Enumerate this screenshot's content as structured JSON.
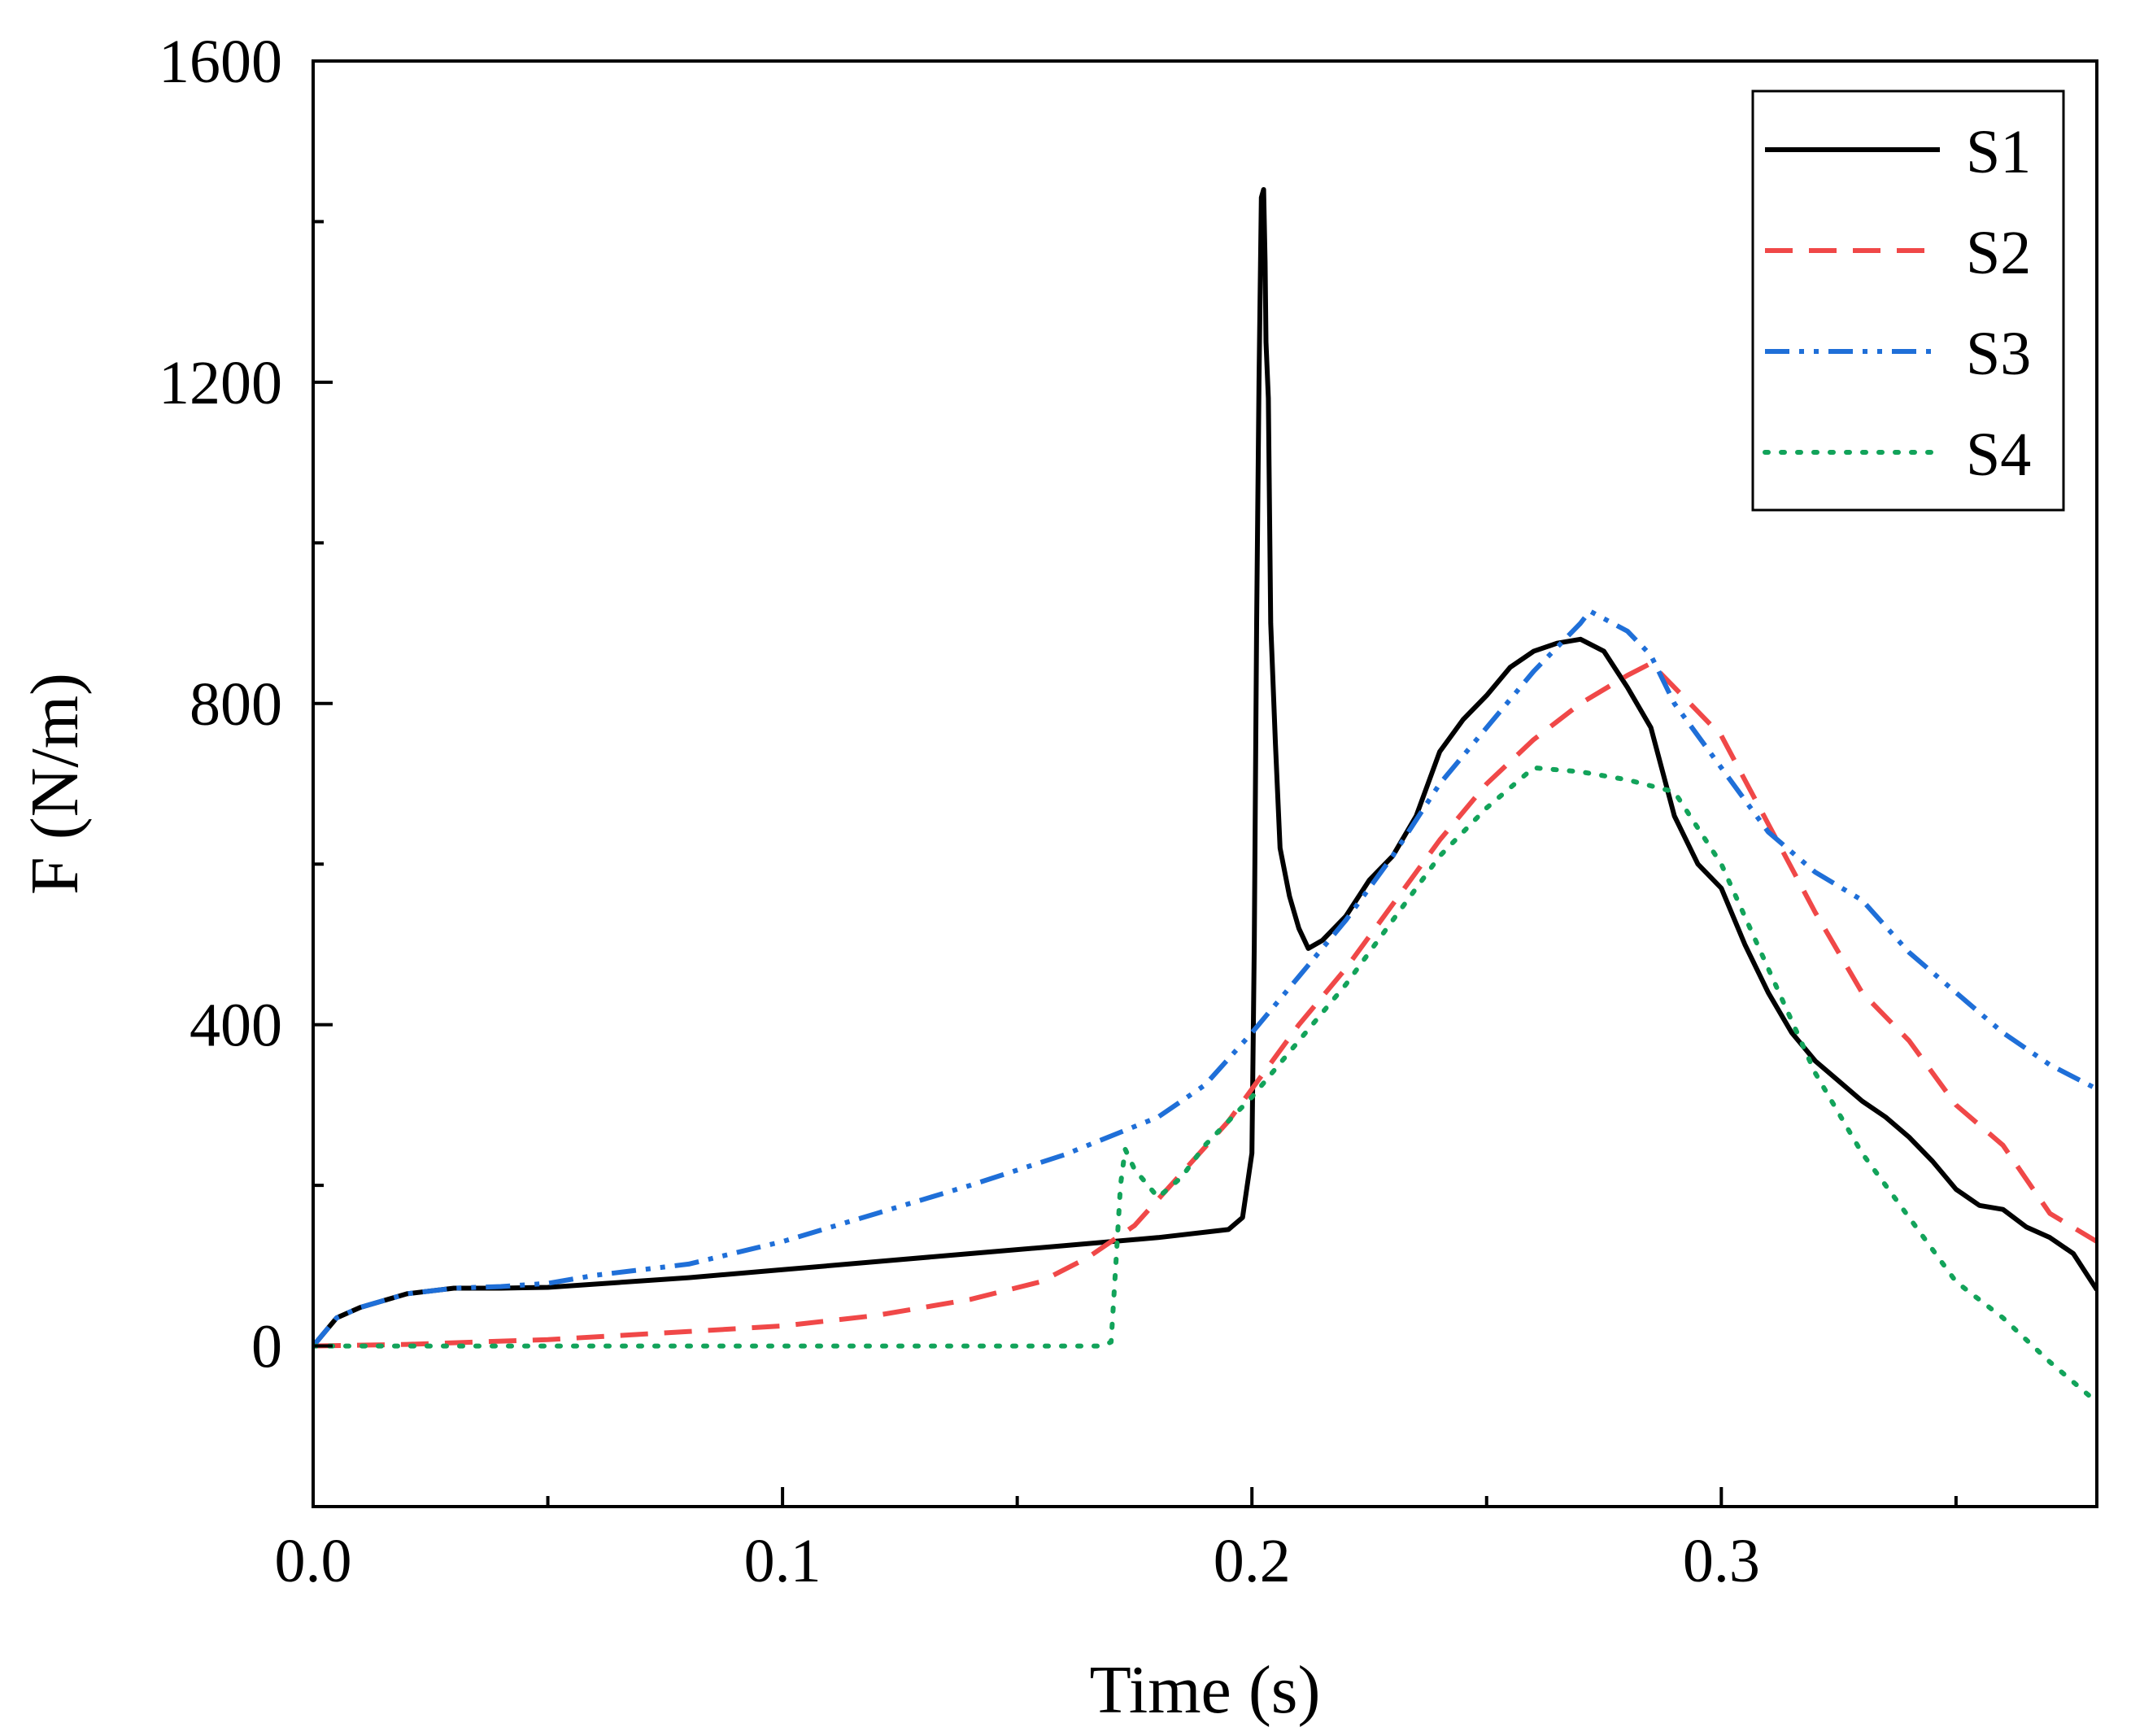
{
  "chart_data": {
    "type": "line",
    "title": "",
    "xlabel": "Time (s)",
    "ylabel": "F (N/m)",
    "xlim": [
      0,
      0.38
    ],
    "ylim": [
      -200,
      1600
    ],
    "x_major_ticks": [
      0.0,
      0.1,
      0.2,
      0.3
    ],
    "x_tick_labels": [
      "0.0",
      "0.1",
      "0.2",
      "0.3"
    ],
    "x_minor_ticks": [
      0.05,
      0.15,
      0.25,
      0.35
    ],
    "y_major_ticks": [
      0,
      400,
      800,
      1200,
      1600
    ],
    "y_tick_labels": [
      "0",
      "400",
      "800",
      "1200",
      "1600"
    ],
    "y_minor_ticks": [
      -200,
      200,
      600,
      1000,
      1400
    ],
    "grid": false,
    "legend_position": "top-right",
    "series": [
      {
        "name": "S1",
        "color": "#000000",
        "style": "solid",
        "points": [
          [
            0,
            0
          ],
          [
            0.005,
            35
          ],
          [
            0.01,
            48
          ],
          [
            0.02,
            65
          ],
          [
            0.03,
            72
          ],
          [
            0.04,
            72
          ],
          [
            0.05,
            73
          ],
          [
            0.08,
            85
          ],
          [
            0.1,
            95
          ],
          [
            0.12,
            105
          ],
          [
            0.14,
            115
          ],
          [
            0.16,
            125
          ],
          [
            0.18,
            135
          ],
          [
            0.195,
            145
          ],
          [
            0.198,
            160
          ],
          [
            0.2,
            240
          ],
          [
            0.2005,
            500
          ],
          [
            0.201,
            900
          ],
          [
            0.2015,
            1200
          ],
          [
            0.202,
            1430
          ],
          [
            0.2025,
            1440
          ],
          [
            0.2028,
            1350
          ],
          [
            0.203,
            1250
          ],
          [
            0.2035,
            1180
          ],
          [
            0.204,
            900
          ],
          [
            0.205,
            750
          ],
          [
            0.206,
            620
          ],
          [
            0.208,
            560
          ],
          [
            0.21,
            520
          ],
          [
            0.212,
            495
          ],
          [
            0.215,
            505
          ],
          [
            0.22,
            535
          ],
          [
            0.225,
            580
          ],
          [
            0.23,
            610
          ],
          [
            0.235,
            660
          ],
          [
            0.24,
            740
          ],
          [
            0.245,
            780
          ],
          [
            0.25,
            810
          ],
          [
            0.255,
            845
          ],
          [
            0.26,
            865
          ],
          [
            0.265,
            875
          ],
          [
            0.27,
            880
          ],
          [
            0.275,
            865
          ],
          [
            0.28,
            820
          ],
          [
            0.285,
            770
          ],
          [
            0.29,
            660
          ],
          [
            0.295,
            600
          ],
          [
            0.3,
            570
          ],
          [
            0.305,
            500
          ],
          [
            0.31,
            440
          ],
          [
            0.315,
            390
          ],
          [
            0.32,
            355
          ],
          [
            0.325,
            330
          ],
          [
            0.33,
            305
          ],
          [
            0.335,
            285
          ],
          [
            0.34,
            260
          ],
          [
            0.345,
            230
          ],
          [
            0.35,
            195
          ],
          [
            0.355,
            175
          ],
          [
            0.36,
            170
          ],
          [
            0.365,
            148
          ],
          [
            0.37,
            135
          ],
          [
            0.375,
            115
          ],
          [
            0.38,
            70
          ]
        ]
      },
      {
        "name": "S2",
        "color": "#f04848",
        "style": "dashed",
        "points": [
          [
            0,
            0
          ],
          [
            0.02,
            2
          ],
          [
            0.05,
            8
          ],
          [
            0.08,
            18
          ],
          [
            0.1,
            25
          ],
          [
            0.12,
            38
          ],
          [
            0.14,
            58
          ],
          [
            0.155,
            80
          ],
          [
            0.165,
            110
          ],
          [
            0.175,
            150
          ],
          [
            0.185,
            215
          ],
          [
            0.195,
            280
          ],
          [
            0.2,
            320
          ],
          [
            0.21,
            400
          ],
          [
            0.22,
            470
          ],
          [
            0.23,
            550
          ],
          [
            0.24,
            630
          ],
          [
            0.25,
            700
          ],
          [
            0.26,
            755
          ],
          [
            0.27,
            800
          ],
          [
            0.28,
            835
          ],
          [
            0.285,
            850
          ],
          [
            0.29,
            820
          ],
          [
            0.3,
            760
          ],
          [
            0.31,
            650
          ],
          [
            0.32,
            540
          ],
          [
            0.33,
            440
          ],
          [
            0.34,
            380
          ],
          [
            0.35,
            300
          ],
          [
            0.36,
            250
          ],
          [
            0.37,
            165
          ],
          [
            0.38,
            130
          ]
        ]
      },
      {
        "name": "S3",
        "color": "#1f6fd8",
        "style": "dashdotdot",
        "points": [
          [
            0,
            0
          ],
          [
            0.005,
            35
          ],
          [
            0.01,
            48
          ],
          [
            0.02,
            65
          ],
          [
            0.03,
            72
          ],
          [
            0.04,
            74
          ],
          [
            0.05,
            78
          ],
          [
            0.06,
            88
          ],
          [
            0.08,
            102
          ],
          [
            0.1,
            130
          ],
          [
            0.12,
            165
          ],
          [
            0.14,
            200
          ],
          [
            0.16,
            238
          ],
          [
            0.18,
            285
          ],
          [
            0.19,
            325
          ],
          [
            0.2,
            390
          ],
          [
            0.21,
            460
          ],
          [
            0.22,
            530
          ],
          [
            0.23,
            610
          ],
          [
            0.24,
            700
          ],
          [
            0.25,
            770
          ],
          [
            0.26,
            840
          ],
          [
            0.27,
            900
          ],
          [
            0.272,
            915
          ],
          [
            0.28,
            890
          ],
          [
            0.285,
            860
          ],
          [
            0.29,
            800
          ],
          [
            0.3,
            720
          ],
          [
            0.31,
            640
          ],
          [
            0.32,
            590
          ],
          [
            0.33,
            555
          ],
          [
            0.34,
            490
          ],
          [
            0.35,
            440
          ],
          [
            0.36,
            390
          ],
          [
            0.37,
            350
          ],
          [
            0.38,
            320
          ]
        ]
      },
      {
        "name": "S4",
        "color": "#12a35a",
        "style": "dotted",
        "points": [
          [
            0,
            0
          ],
          [
            0.05,
            0
          ],
          [
            0.1,
            0
          ],
          [
            0.15,
            0
          ],
          [
            0.168,
            0
          ],
          [
            0.17,
            5
          ],
          [
            0.171,
            100
          ],
          [
            0.172,
            200
          ],
          [
            0.173,
            245
          ],
          [
            0.175,
            220
          ],
          [
            0.18,
            185
          ],
          [
            0.185,
            210
          ],
          [
            0.19,
            250
          ],
          [
            0.2,
            310
          ],
          [
            0.21,
            380
          ],
          [
            0.22,
            450
          ],
          [
            0.23,
            530
          ],
          [
            0.24,
            610
          ],
          [
            0.25,
            670
          ],
          [
            0.26,
            720
          ],
          [
            0.27,
            715
          ],
          [
            0.28,
            705
          ],
          [
            0.29,
            690
          ],
          [
            0.3,
            600
          ],
          [
            0.31,
            470
          ],
          [
            0.32,
            340
          ],
          [
            0.33,
            240
          ],
          [
            0.34,
            160
          ],
          [
            0.35,
            80
          ],
          [
            0.36,
            35
          ],
          [
            0.37,
            -20
          ],
          [
            0.38,
            -70
          ]
        ]
      }
    ]
  }
}
